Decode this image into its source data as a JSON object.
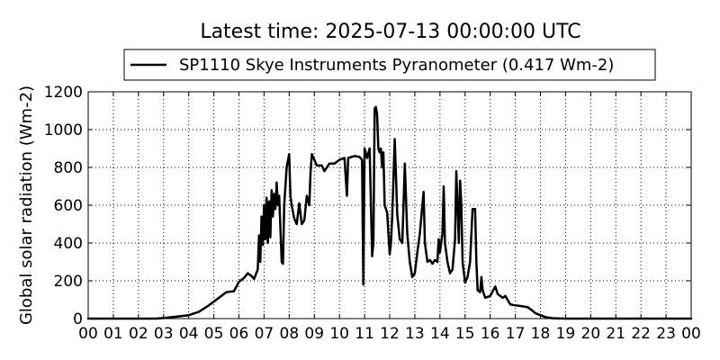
{
  "chart_data": {
    "type": "line",
    "title": "Latest time: 2025-07-13 00:00:00 UTC",
    "xlabel": "",
    "ylabel": "Global solar radiation (Wm-2)",
    "xlim": [
      0,
      24
    ],
    "ylim": [
      0,
      1200
    ],
    "x_ticks": [
      0,
      1,
      2,
      3,
      4,
      5,
      6,
      7,
      8,
      9,
      10,
      11,
      12,
      13,
      14,
      15,
      16,
      17,
      18,
      19,
      20,
      21,
      22,
      23,
      24
    ],
    "x_tick_labels": [
      "00",
      "01",
      "02",
      "03",
      "04",
      "05",
      "06",
      "07",
      "08",
      "09",
      "10",
      "11",
      "12",
      "13",
      "14",
      "15",
      "16",
      "17",
      "18",
      "19",
      "20",
      "21",
      "22",
      "23",
      "00"
    ],
    "y_ticks": [
      0,
      200,
      400,
      600,
      800,
      1000,
      1200
    ],
    "y_tick_labels": [
      "0",
      "200",
      "400",
      "600",
      "800",
      "1000",
      "1200"
    ],
    "grid": true,
    "legend_position": "top-center",
    "series": [
      {
        "name": "SP1110 Skye Instruments Pyranometer (0.417 Wm-2)",
        "color": "#000000",
        "points": [
          [
            0,
            0
          ],
          [
            2.7,
            0
          ],
          [
            3.0,
            3
          ],
          [
            3.5,
            10
          ],
          [
            4.0,
            18
          ],
          [
            4.4,
            35
          ],
          [
            4.8,
            70
          ],
          [
            5.0,
            90
          ],
          [
            5.3,
            120
          ],
          [
            5.5,
            140
          ],
          [
            5.8,
            145
          ],
          [
            6.0,
            195
          ],
          [
            6.2,
            215
          ],
          [
            6.35,
            240
          ],
          [
            6.5,
            225
          ],
          [
            6.6,
            210
          ],
          [
            6.75,
            260
          ],
          [
            6.8,
            440
          ],
          [
            6.85,
            300
          ],
          [
            6.9,
            540
          ],
          [
            6.95,
            390
          ],
          [
            7.0,
            600
          ],
          [
            7.05,
            420
          ],
          [
            7.1,
            640
          ],
          [
            7.15,
            400
          ],
          [
            7.2,
            620
          ],
          [
            7.25,
            430
          ],
          [
            7.3,
            680
          ],
          [
            7.35,
            540
          ],
          [
            7.4,
            660
          ],
          [
            7.45,
            580
          ],
          [
            7.5,
            720
          ],
          [
            7.55,
            600
          ],
          [
            7.6,
            650
          ],
          [
            7.7,
            300
          ],
          [
            7.75,
            290
          ],
          [
            7.8,
            600
          ],
          [
            7.9,
            800
          ],
          [
            8.0,
            870
          ],
          [
            8.05,
            650
          ],
          [
            8.1,
            600
          ],
          [
            8.2,
            530
          ],
          [
            8.3,
            500
          ],
          [
            8.4,
            610
          ],
          [
            8.5,
            500
          ],
          [
            8.6,
            520
          ],
          [
            8.7,
            650
          ],
          [
            8.8,
            600
          ],
          [
            8.85,
            780
          ],
          [
            8.9,
            870
          ],
          [
            9.0,
            840
          ],
          [
            9.1,
            810
          ],
          [
            9.3,
            810
          ],
          [
            9.4,
            780
          ],
          [
            9.5,
            800
          ],
          [
            9.6,
            820
          ],
          [
            9.8,
            820
          ],
          [
            10.0,
            840
          ],
          [
            10.2,
            850
          ],
          [
            10.25,
            750
          ],
          [
            10.3,
            650
          ],
          [
            10.35,
            850
          ],
          [
            10.6,
            860
          ],
          [
            10.8,
            855
          ],
          [
            10.9,
            840
          ],
          [
            10.95,
            180
          ],
          [
            11.0,
            900
          ],
          [
            11.1,
            850
          ],
          [
            11.2,
            900
          ],
          [
            11.3,
            330
          ],
          [
            11.35,
            400
          ],
          [
            11.4,
            1110
          ],
          [
            11.45,
            1120
          ],
          [
            11.5,
            1080
          ],
          [
            11.55,
            900
          ],
          [
            11.6,
            880
          ],
          [
            11.65,
            900
          ],
          [
            11.7,
            800
          ],
          [
            11.75,
            880
          ],
          [
            11.8,
            600
          ],
          [
            11.9,
            560
          ],
          [
            12.0,
            340
          ],
          [
            12.05,
            400
          ],
          [
            12.1,
            540
          ],
          [
            12.2,
            950
          ],
          [
            12.3,
            550
          ],
          [
            12.4,
            420
          ],
          [
            12.5,
            400
          ],
          [
            12.6,
            820
          ],
          [
            12.7,
            450
          ],
          [
            12.8,
            300
          ],
          [
            12.9,
            220
          ],
          [
            13.0,
            240
          ],
          [
            13.1,
            350
          ],
          [
            13.2,
            450
          ],
          [
            13.3,
            600
          ],
          [
            13.35,
            670
          ],
          [
            13.4,
            400
          ],
          [
            13.5,
            300
          ],
          [
            13.6,
            310
          ],
          [
            13.7,
            290
          ],
          [
            13.8,
            310
          ],
          [
            13.9,
            300
          ],
          [
            13.95,
            420
          ],
          [
            14.0,
            350
          ],
          [
            14.1,
            450
          ],
          [
            14.15,
            700
          ],
          [
            14.2,
            400
          ],
          [
            14.3,
            300
          ],
          [
            14.4,
            240
          ],
          [
            14.5,
            260
          ],
          [
            14.6,
            420
          ],
          [
            14.65,
            780
          ],
          [
            14.7,
            600
          ],
          [
            14.75,
            400
          ],
          [
            14.8,
            730
          ],
          [
            14.85,
            600
          ],
          [
            14.9,
            300
          ],
          [
            15.0,
            190
          ],
          [
            15.1,
            220
          ],
          [
            15.2,
            300
          ],
          [
            15.3,
            580
          ],
          [
            15.4,
            580
          ],
          [
            15.45,
            300
          ],
          [
            15.5,
            150
          ],
          [
            15.6,
            140
          ],
          [
            15.65,
            220
          ],
          [
            15.7,
            150
          ],
          [
            15.8,
            110
          ],
          [
            16.0,
            120
          ],
          [
            16.2,
            170
          ],
          [
            16.3,
            130
          ],
          [
            16.5,
            110
          ],
          [
            16.6,
            120
          ],
          [
            16.8,
            75
          ],
          [
            17.0,
            70
          ],
          [
            17.3,
            65
          ],
          [
            17.5,
            60
          ],
          [
            17.7,
            40
          ],
          [
            17.8,
            28
          ],
          [
            18.0,
            18
          ],
          [
            18.2,
            8
          ],
          [
            18.5,
            2
          ],
          [
            19.0,
            0
          ],
          [
            24,
            0
          ]
        ]
      }
    ]
  }
}
